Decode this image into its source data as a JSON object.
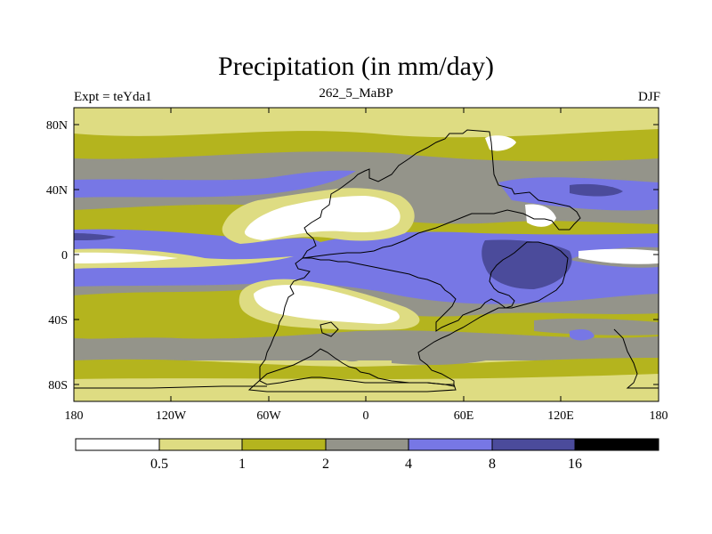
{
  "title": "Precipitation (in mm/day)",
  "subtitle": {
    "left": "Expt = teYda1",
    "center": "262_5_MaBP",
    "right": "DJF"
  },
  "map": {
    "projection": "cylindrical equidistant",
    "lat_ticks": [
      "80N",
      "40N",
      "0",
      "40S",
      "80S"
    ],
    "lon_ticks": [
      "180",
      "120W",
      "60W",
      "0",
      "60E",
      "120E",
      "180"
    ]
  },
  "colorbar": {
    "levels": [
      "0.5",
      "1",
      "2",
      "4",
      "8",
      "16"
    ],
    "colors": [
      "#ffffff",
      "#dedc82",
      "#b4b41e",
      "#94948a",
      "#7777e5",
      "#4b4b9b",
      "#000000"
    ]
  }
}
